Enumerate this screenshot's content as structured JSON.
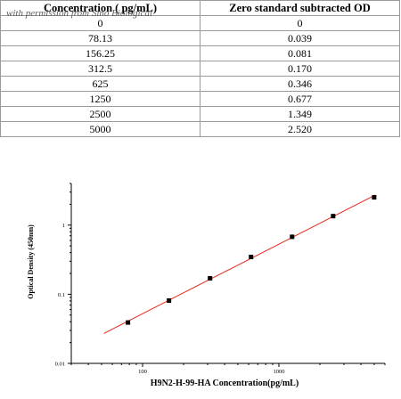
{
  "table": {
    "watermark": "with permission from Sino Biological",
    "headers": [
      "Concentration ( pg/mL)",
      "Zero standard subtracted OD"
    ],
    "rows": [
      [
        "0",
        "0"
      ],
      [
        "78.13",
        "0.039"
      ],
      [
        "156.25",
        "0.081"
      ],
      [
        "312.5",
        "0.170"
      ],
      [
        "625",
        "0.346"
      ],
      [
        "1250",
        "0.677"
      ],
      [
        "2500",
        "1.349"
      ],
      [
        "5000",
        "2.520"
      ]
    ]
  },
  "chart_data": {
    "type": "scatter",
    "scale": "log-log",
    "xlabel": "H9N2-H-99-HA  Concentration(pg/mL)",
    "ylabel": "Optical Density (450nm)",
    "xlim": [
      30,
      6000
    ],
    "ylim": [
      0.01,
      4
    ],
    "xticks": [
      {
        "value": 100,
        "label": "100"
      },
      {
        "value": 1000,
        "label": "1000"
      }
    ],
    "yticks": [
      {
        "value": 0.01,
        "label": "0.01"
      },
      {
        "value": 0.1,
        "label": "0.1"
      },
      {
        "value": 1,
        "label": "1"
      }
    ],
    "points": [
      {
        "x": 78.13,
        "y": 0.039
      },
      {
        "x": 156.25,
        "y": 0.081
      },
      {
        "x": 312.5,
        "y": 0.17
      },
      {
        "x": 625,
        "y": 0.346
      },
      {
        "x": 1250,
        "y": 0.677
      },
      {
        "x": 2500,
        "y": 1.349
      },
      {
        "x": 5000,
        "y": 2.52
      }
    ],
    "fit_line": {
      "color": "#e8281e",
      "x_start": 52,
      "x_end": 5100
    },
    "marker_color": "#000000",
    "grid": false,
    "legend": "none"
  }
}
